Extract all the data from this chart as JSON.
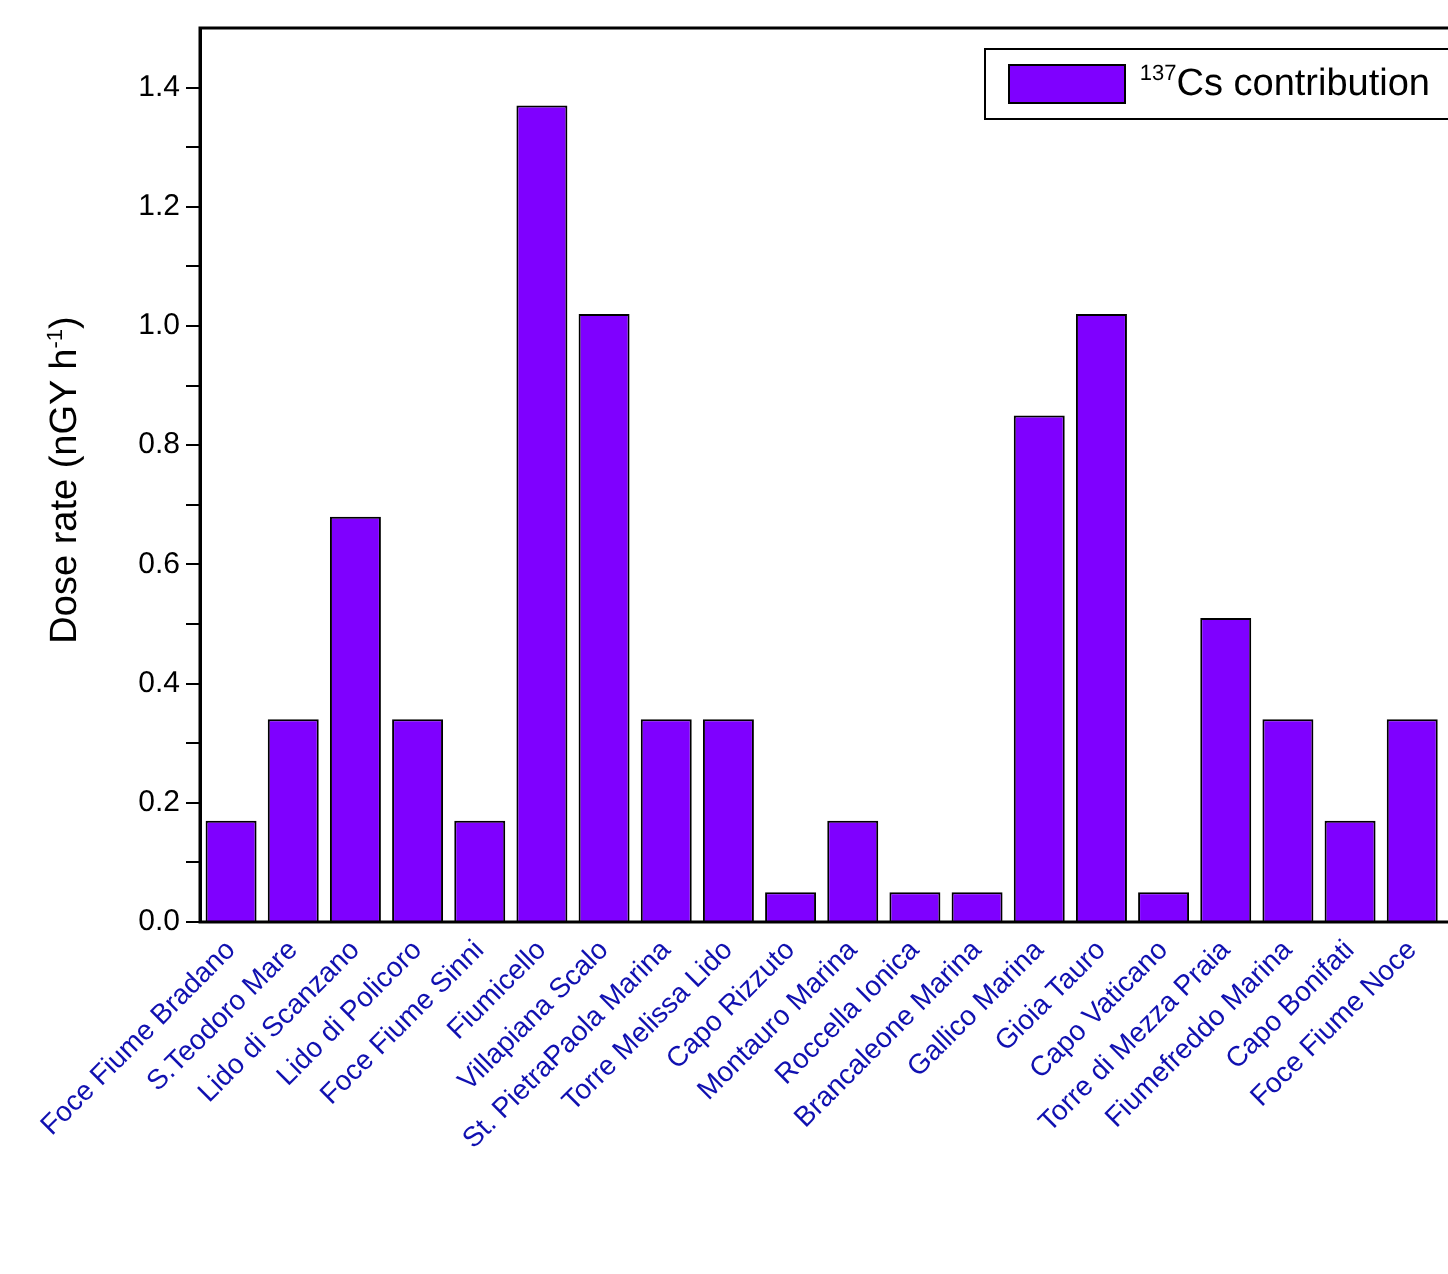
{
  "chart_data": {
    "type": "bar",
    "ylabel": "Dose rate (nGY h$^{-1}$)",
    "categories": [
      "Foce Fiume Bradano",
      "S.Teodoro Mare",
      "Lido di Scanzano",
      "Lido di Policoro",
      "Foce Fiume Sinni",
      "Fiumicello",
      "Villapiana Scalo",
      "St. PietraPaola Marina",
      "Torre Melissa Lido",
      "Capo Rizzuto",
      "Montauro Marina",
      "Roccella Ionica",
      "Brancaleone Marina",
      "Gallico Marina",
      "Gioia Tauro",
      "Capo Vaticano",
      "Torre di Mezza Praia",
      "Fiumefreddo Marina",
      "Capo Bonifati",
      "Foce Fiume Noce"
    ],
    "series": [
      {
        "name": "$^{137}$Cs contribution",
        "color": "#7f00ff",
        "values": [
          0.17,
          0.34,
          0.68,
          0.34,
          0.17,
          1.37,
          1.02,
          0.34,
          0.34,
          0.05,
          0.17,
          0.05,
          0.05,
          0.85,
          1.02,
          0.05,
          0.51,
          0.34,
          0.17,
          0.34
        ]
      }
    ],
    "ylim": [
      0,
      1.5
    ],
    "yticks": [
      {
        "value": 0,
        "label": "0.0"
      },
      {
        "value": 0.1,
        "label": null
      },
      {
        "value": 0.2,
        "label": "0.2"
      },
      {
        "value": 0.3,
        "label": null
      },
      {
        "value": 0.4,
        "label": "0.4"
      },
      {
        "value": 0.5,
        "label": null
      },
      {
        "value": 0.6,
        "label": "0.6"
      },
      {
        "value": 0.7,
        "label": null
      },
      {
        "value": 0.8,
        "label": "0.8"
      },
      {
        "value": 0.9,
        "label": null
      },
      {
        "value": 1.0,
        "label": "1.0"
      },
      {
        "value": 1.1,
        "label": null
      },
      {
        "value": 1.2,
        "label": "1.2"
      },
      {
        "value": 1.3,
        "label": null
      },
      {
        "value": 1.4,
        "label": "1.4"
      }
    ],
    "grid": false,
    "legend": "top right"
  }
}
